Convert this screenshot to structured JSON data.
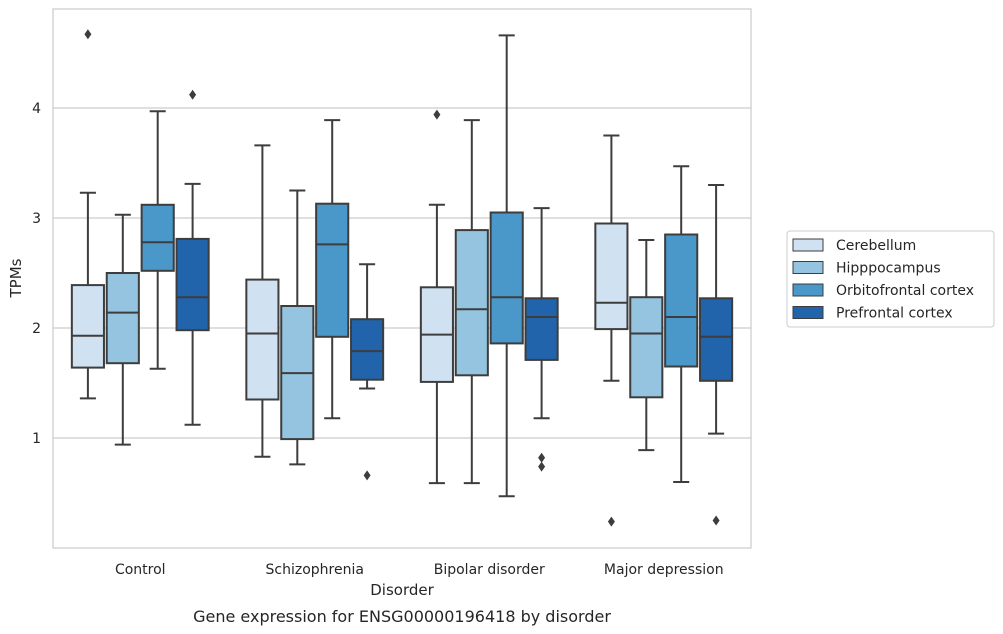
{
  "chart_data": {
    "type": "boxplot",
    "xlabel": "Disorder",
    "ylabel": "TPMs",
    "caption": "Gene expression for ENSG00000196418 by disorder",
    "categories": [
      "Control",
      "Schizophrenia",
      "Bipolar disorder",
      "Major depression"
    ],
    "ylim": [
      0.0,
      4.9
    ],
    "yticks": [
      1,
      2,
      3,
      4
    ],
    "ytick_labels": [
      "1",
      "2",
      "3",
      "4"
    ],
    "grid": "horizontal",
    "legend_position": "right",
    "series": [
      {
        "name": "Cerebellum",
        "color": "#d0e1f2",
        "boxes": [
          {
            "whisker_low": 1.36,
            "q1": 1.64,
            "median": 1.93,
            "q3": 2.39,
            "whisker_high": 3.23,
            "outliers": [
              4.67
            ]
          },
          {
            "whisker_low": 0.83,
            "q1": 1.35,
            "median": 1.95,
            "q3": 2.44,
            "whisker_high": 3.66,
            "outliers": []
          },
          {
            "whisker_low": 0.59,
            "q1": 1.51,
            "median": 1.94,
            "q3": 2.37,
            "whisker_high": 3.12,
            "outliers": [
              3.94
            ]
          },
          {
            "whisker_low": 1.52,
            "q1": 1.99,
            "median": 2.23,
            "q3": 2.95,
            "whisker_high": 3.75,
            "outliers": [
              0.24
            ]
          }
        ]
      },
      {
        "name": "Hipppocampus",
        "color": "#94c4df",
        "boxes": [
          {
            "whisker_low": 0.94,
            "q1": 1.68,
            "median": 2.14,
            "q3": 2.5,
            "whisker_high": 3.03,
            "outliers": []
          },
          {
            "whisker_low": 0.76,
            "q1": 0.99,
            "median": 1.59,
            "q3": 2.2,
            "whisker_high": 3.25,
            "outliers": []
          },
          {
            "whisker_low": 0.59,
            "q1": 1.57,
            "median": 2.17,
            "q3": 2.89,
            "whisker_high": 3.89,
            "outliers": []
          },
          {
            "whisker_low": 0.89,
            "q1": 1.37,
            "median": 1.95,
            "q3": 2.28,
            "whisker_high": 2.8,
            "outliers": []
          }
        ]
      },
      {
        "name": "Orbitofrontal cortex",
        "color": "#4a98c9",
        "boxes": [
          {
            "whisker_low": 1.63,
            "q1": 2.52,
            "median": 2.78,
            "q3": 3.12,
            "whisker_high": 3.97,
            "outliers": []
          },
          {
            "whisker_low": 1.18,
            "q1": 1.92,
            "median": 2.76,
            "q3": 3.13,
            "whisker_high": 3.89,
            "outliers": []
          },
          {
            "whisker_low": 0.47,
            "q1": 1.86,
            "median": 2.28,
            "q3": 3.05,
            "whisker_high": 4.66,
            "outliers": []
          },
          {
            "whisker_low": 0.6,
            "q1": 1.65,
            "median": 2.1,
            "q3": 2.85,
            "whisker_high": 3.47,
            "outliers": []
          }
        ]
      },
      {
        "name": "Prefrontal cortex",
        "color": "#2164ab",
        "boxes": [
          {
            "whisker_low": 1.12,
            "q1": 1.98,
            "median": 2.28,
            "q3": 2.81,
            "whisker_high": 3.31,
            "outliers": [
              4.12
            ]
          },
          {
            "whisker_low": 1.45,
            "q1": 1.53,
            "median": 1.79,
            "q3": 2.08,
            "whisker_high": 2.58,
            "outliers": [
              0.66
            ]
          },
          {
            "whisker_low": 1.18,
            "q1": 1.71,
            "median": 2.1,
            "q3": 2.27,
            "whisker_high": 3.09,
            "outliers": [
              0.82,
              0.74
            ]
          },
          {
            "whisker_low": 1.04,
            "q1": 1.52,
            "median": 1.92,
            "q3": 2.27,
            "whisker_high": 3.3,
            "outliers": [
              0.25
            ]
          }
        ]
      }
    ]
  }
}
